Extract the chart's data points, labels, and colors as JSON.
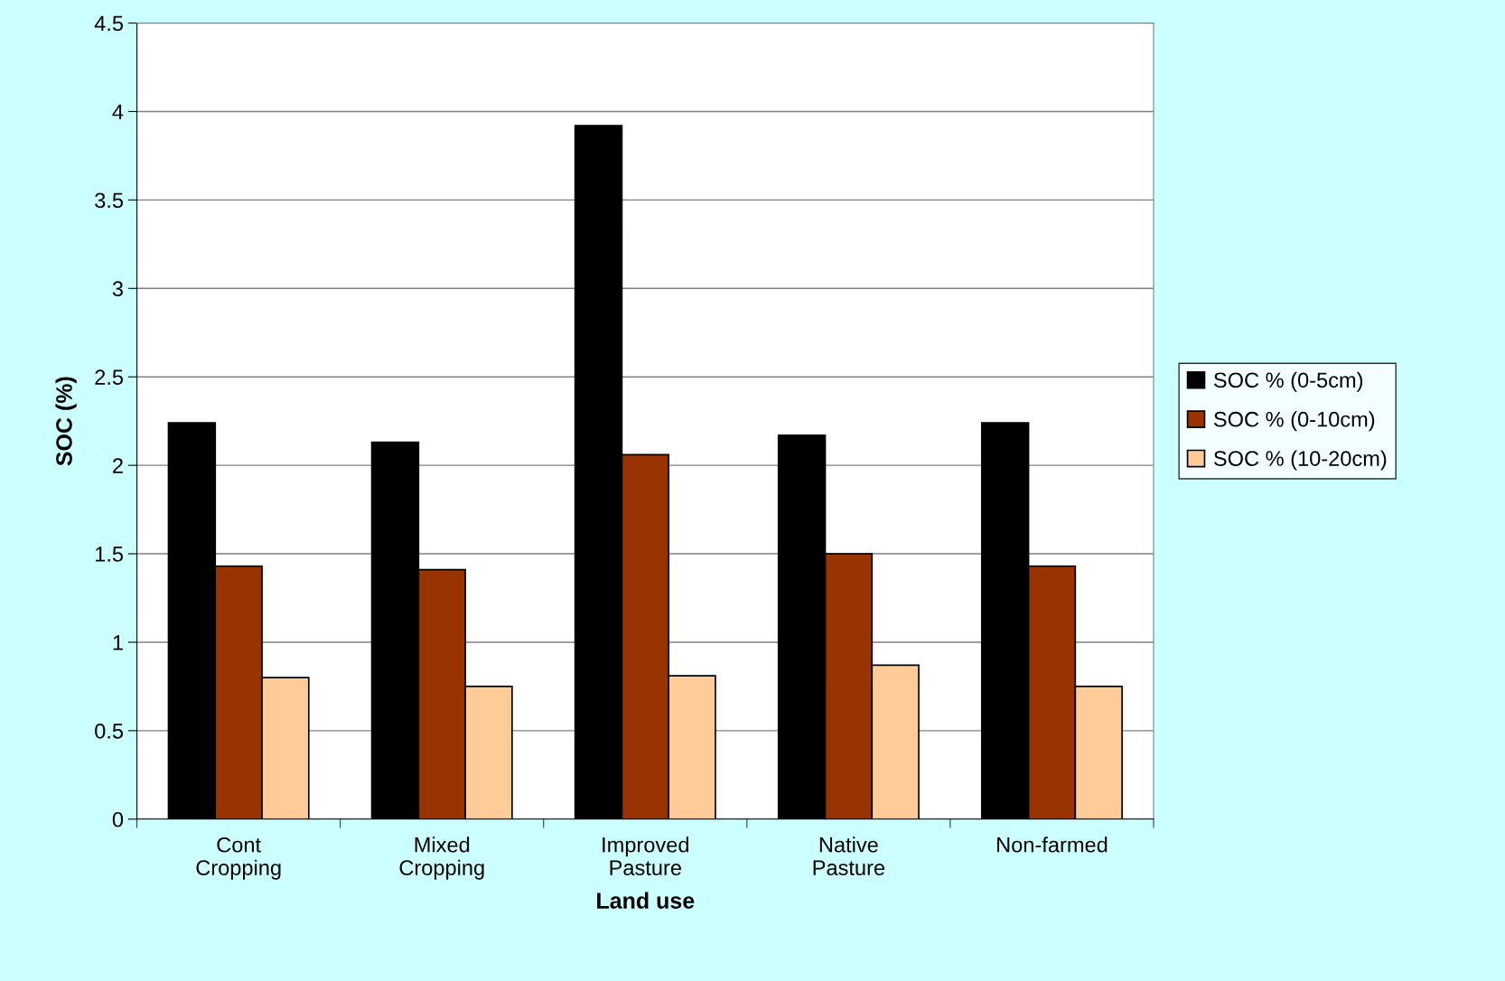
{
  "chart_data": {
    "type": "bar",
    "xlabel": "Land use",
    "ylabel": "SOC (%)",
    "categories": [
      "Cont\nCropping",
      "Mixed\nCropping",
      "Improved\nPasture",
      "Native\nPasture",
      "Non-farmed"
    ],
    "series": [
      {
        "name": "SOC % (0-5cm)",
        "color": "#000000",
        "values": [
          2.24,
          2.13,
          3.92,
          2.17,
          2.24
        ]
      },
      {
        "name": "SOC % (0-10cm)",
        "color": "#993300",
        "values": [
          1.43,
          1.41,
          2.06,
          1.5,
          1.43
        ]
      },
      {
        "name": "SOC % (10-20cm)",
        "color": "#ffcc99",
        "values": [
          0.8,
          0.75,
          0.81,
          0.87,
          0.75
        ]
      }
    ],
    "ylim": [
      0,
      4.5
    ],
    "yticks": [
      0,
      0.5,
      1,
      1.5,
      2,
      2.5,
      3,
      3.5,
      4,
      4.5
    ],
    "grid": "y",
    "legend": "right"
  }
}
